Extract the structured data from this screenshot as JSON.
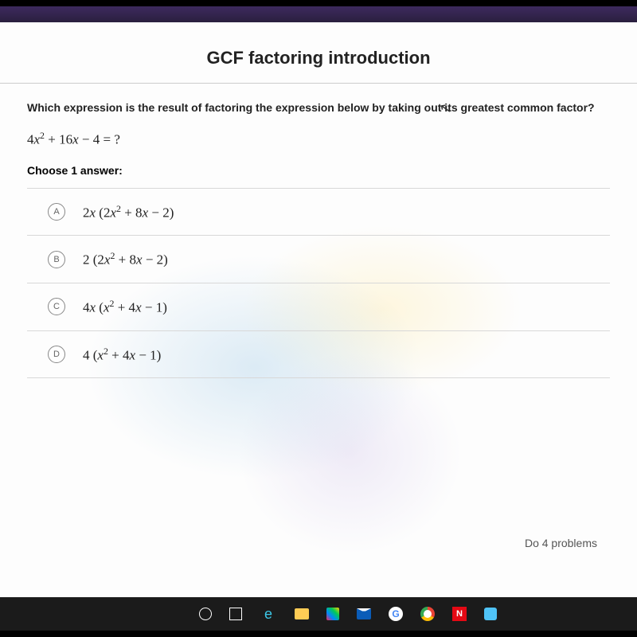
{
  "page": {
    "title": "GCF factoring introduction",
    "question": "Which expression is the result of factoring the expression below by taking out its greatest common factor?",
    "expression_html": "4<i>x</i><sup>2</sup> + 16<i>x</i> − 4 = ?",
    "choose_label": "Choose 1 answer:",
    "answers": [
      {
        "letter": "A",
        "math_html": "2<i>x</i> (2<i>x</i><sup>2</sup> + 8<i>x</i> − 2)"
      },
      {
        "letter": "B",
        "math_html": "2 (2<i>x</i><sup>2</sup> + 8<i>x</i> − 2)"
      },
      {
        "letter": "C",
        "math_html": "4<i>x</i> (<i>x</i><sup>2</sup> + 4<i>x</i> − 1)"
      },
      {
        "letter": "D",
        "math_html": "4 (<i>x</i><sup>2</sup> + 4<i>x</i> − 1)"
      }
    ],
    "footer_text": "Do 4 problems"
  },
  "taskbar": {
    "icons": [
      {
        "name": "search-icon",
        "cls": "tb-circle"
      },
      {
        "name": "task-view-icon",
        "cls": "tb-cortana"
      },
      {
        "name": "edge-icon",
        "cls": "tb-edge",
        "glyph": "e"
      },
      {
        "name": "file-explorer-icon",
        "cls": "tb-folder"
      },
      {
        "name": "store-icon",
        "cls": "tb-store"
      },
      {
        "name": "mail-icon",
        "cls": "tb-mail"
      },
      {
        "name": "google-icon",
        "cls": "tb-g",
        "glyph": "G"
      },
      {
        "name": "chrome-icon",
        "cls": "tb-chrome"
      },
      {
        "name": "netflix-icon",
        "cls": "tb-n",
        "glyph": "N"
      },
      {
        "name": "app-icon",
        "cls": "tb-blue"
      }
    ]
  }
}
